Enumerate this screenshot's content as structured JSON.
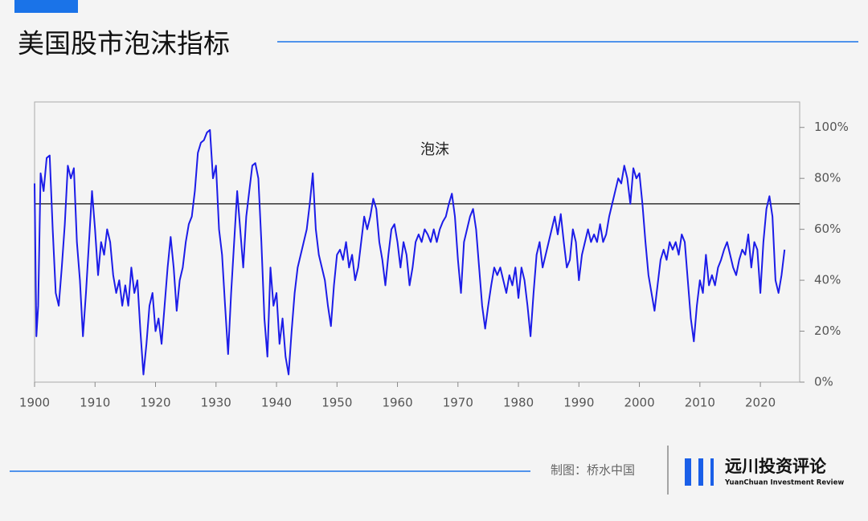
{
  "chart_data": {
    "type": "line",
    "title": "美国股市泡沫指标",
    "annotation": "泡沫",
    "threshold": 70,
    "xlim": [
      1900,
      2026.5
    ],
    "ylim": [
      0,
      110
    ],
    "xticks": [
      1900,
      1910,
      1920,
      1930,
      1940,
      1950,
      1960,
      1970,
      1980,
      1990,
      2000,
      2010,
      2020
    ],
    "yticks": [
      {
        "value": 0,
        "label": "0%"
      },
      {
        "value": 20,
        "label": "20%"
      },
      {
        "value": 40,
        "label": "40%"
      },
      {
        "value": 60,
        "label": "60%"
      },
      {
        "value": 80,
        "label": "80%"
      },
      {
        "value": 100,
        "label": "100%"
      }
    ],
    "color": "#1c1ce8",
    "x": [
      1900,
      1900.3,
      1900.6,
      1901,
      1901.5,
      1902,
      1902.5,
      1903,
      1903.5,
      1904,
      1904.5,
      1905,
      1905.5,
      1906,
      1906.5,
      1907,
      1907.5,
      1908,
      1908.5,
      1909,
      1909.5,
      1910,
      1910.5,
      1911,
      1911.5,
      1912,
      1912.5,
      1913,
      1913.5,
      1914,
      1914.5,
      1915,
      1915.5,
      1916,
      1916.5,
      1917,
      1917.5,
      1918,
      1918.5,
      1919,
      1919.5,
      1920,
      1920.5,
      1921,
      1921.5,
      1922,
      1922.5,
      1923,
      1923.5,
      1924,
      1924.5,
      1925,
      1925.5,
      1926,
      1926.5,
      1927,
      1927.5,
      1928,
      1928.5,
      1929,
      1929.5,
      1930,
      1930.5,
      1931,
      1931.5,
      1932,
      1932.5,
      1933,
      1933.5,
      1934,
      1934.5,
      1935,
      1935.5,
      1936,
      1936.5,
      1937,
      1937.5,
      1938,
      1938.5,
      1939,
      1939.5,
      1940,
      1940.5,
      1941,
      1941.5,
      1942,
      1942.5,
      1943,
      1943.5,
      1944,
      1944.5,
      1945,
      1945.5,
      1946,
      1946.5,
      1947,
      1947.5,
      1948,
      1948.5,
      1949,
      1949.5,
      1950,
      1950.5,
      1951,
      1951.5,
      1952,
      1952.5,
      1953,
      1953.5,
      1954,
      1954.5,
      1955,
      1955.5,
      1956,
      1956.5,
      1957,
      1957.5,
      1958,
      1958.5,
      1959,
      1959.5,
      1960,
      1960.5,
      1961,
      1961.5,
      1962,
      1962.5,
      1963,
      1963.5,
      1964,
      1964.5,
      1965,
      1965.5,
      1966,
      1966.5,
      1967,
      1967.5,
      1968,
      1968.5,
      1969,
      1969.5,
      1970,
      1970.5,
      1971,
      1971.5,
      1972,
      1972.5,
      1973,
      1973.5,
      1974,
      1974.5,
      1975,
      1975.5,
      1976,
      1976.5,
      1977,
      1977.5,
      1978,
      1978.5,
      1979,
      1979.5,
      1980,
      1980.5,
      1981,
      1981.5,
      1982,
      1982.5,
      1983,
      1983.5,
      1984,
      1984.5,
      1985,
      1985.5,
      1986,
      1986.5,
      1987,
      1987.5,
      1988,
      1988.5,
      1989,
      1989.5,
      1990,
      1990.5,
      1991,
      1991.5,
      1992,
      1992.5,
      1993,
      1993.5,
      1994,
      1994.5,
      1995,
      1995.5,
      1996,
      1996.5,
      1997,
      1997.5,
      1998,
      1998.5,
      1999,
      1999.5,
      2000,
      2000.5,
      2001,
      2001.5,
      2002,
      2002.5,
      2003,
      2003.5,
      2004,
      2004.5,
      2005,
      2005.5,
      2006,
      2006.5,
      2007,
      2007.5,
      2008,
      2008.5,
      2009,
      2009.5,
      2010,
      2010.5,
      2011,
      2011.5,
      2012,
      2012.5,
      2013,
      2013.5,
      2014,
      2014.5,
      2015,
      2015.5,
      2016,
      2016.5,
      2017,
      2017.5,
      2018,
      2018.5,
      2019,
      2019.5,
      2020,
      2020.5,
      2021,
      2021.5,
      2022,
      2022.5,
      2023,
      2023.5,
      2024
    ],
    "values": [
      78,
      18,
      30,
      82,
      75,
      88,
      89,
      60,
      35,
      30,
      45,
      62,
      85,
      80,
      84,
      55,
      40,
      18,
      35,
      55,
      75,
      60,
      42,
      55,
      50,
      60,
      55,
      42,
      35,
      40,
      30,
      38,
      30,
      45,
      35,
      40,
      20,
      3,
      15,
      30,
      35,
      20,
      25,
      15,
      30,
      45,
      57,
      45,
      28,
      40,
      45,
      55,
      62,
      65,
      75,
      90,
      94,
      95,
      98,
      99,
      80,
      85,
      60,
      50,
      30,
      11,
      35,
      55,
      75,
      60,
      45,
      65,
      75,
      85,
      86,
      80,
      55,
      25,
      10,
      45,
      30,
      35,
      15,
      25,
      10,
      3,
      20,
      35,
      45,
      50,
      55,
      60,
      70,
      82,
      60,
      50,
      45,
      40,
      30,
      22,
      38,
      50,
      52,
      48,
      55,
      45,
      50,
      40,
      45,
      55,
      65,
      60,
      65,
      72,
      68,
      55,
      48,
      38,
      50,
      60,
      62,
      55,
      45,
      55,
      50,
      38,
      45,
      55,
      58,
      55,
      60,
      58,
      55,
      60,
      55,
      60,
      63,
      65,
      70,
      74,
      65,
      48,
      35,
      55,
      60,
      65,
      68,
      60,
      45,
      30,
      21,
      30,
      38,
      45,
      42,
      45,
      40,
      35,
      42,
      38,
      45,
      33,
      45,
      40,
      30,
      18,
      35,
      50,
      55,
      45,
      50,
      55,
      60,
      65,
      58,
      66,
      55,
      45,
      48,
      60,
      55,
      40,
      50,
      55,
      60,
      55,
      58,
      55,
      62,
      55,
      58,
      65,
      70,
      75,
      80,
      78,
      85,
      80,
      70,
      84,
      80,
      82,
      70,
      55,
      42,
      35,
      28,
      38,
      48,
      52,
      48,
      55,
      52,
      55,
      50,
      58,
      55,
      40,
      25,
      16,
      30,
      40,
      35,
      50,
      38,
      42,
      38,
      45,
      48,
      52,
      55,
      50,
      45,
      42,
      48,
      52,
      50,
      58,
      45,
      55,
      52,
      35,
      55,
      68,
      73,
      65,
      40,
      35,
      42,
      52
    ]
  },
  "footer": {
    "credit": "制图：桥水中国",
    "brand": "远川投资评论",
    "brand_en": "YuanChuan Investment Review"
  }
}
